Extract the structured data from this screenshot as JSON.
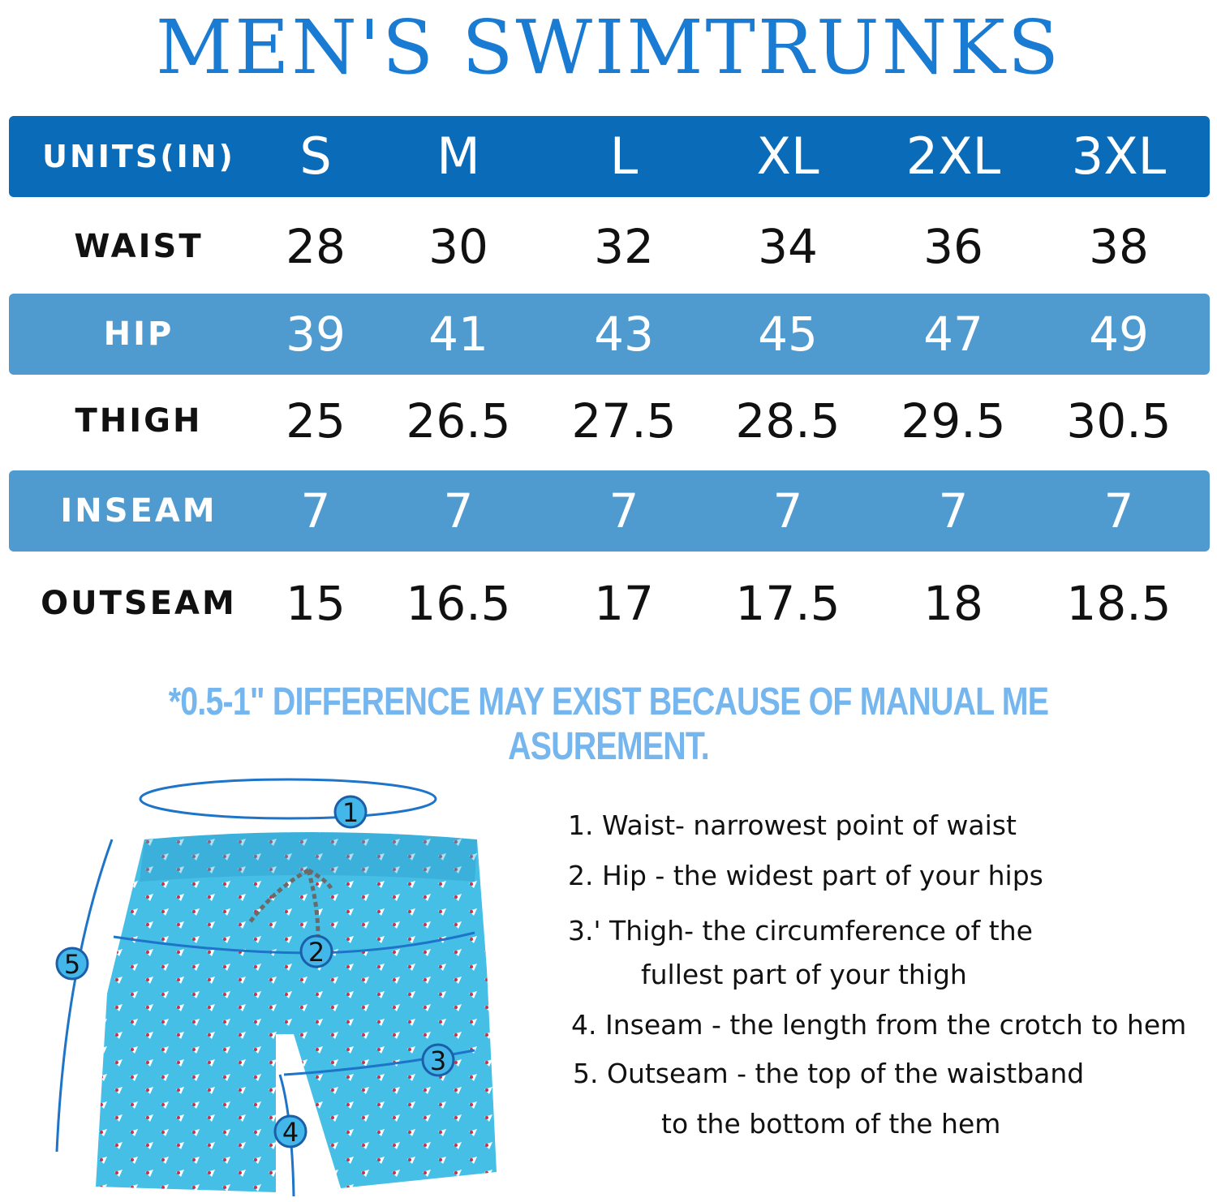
{
  "title": "MEN'S SWIMTRUNKS",
  "table": {
    "header": {
      "label": "UNITS(IN)",
      "sizes": [
        "S",
        "M",
        "L",
        "XL",
        "2XL",
        "3XL"
      ]
    },
    "rows": [
      {
        "label": "WAIST",
        "values": [
          "28",
          "30",
          "32",
          "34",
          "36",
          "38"
        ]
      },
      {
        "label": "HIP",
        "values": [
          "39",
          "41",
          "43",
          "45",
          "47",
          "49"
        ]
      },
      {
        "label": "THIGH",
        "values": [
          "25",
          "26.5",
          "27.5",
          "28.5",
          "29.5",
          "30.5"
        ]
      },
      {
        "label": "INSEAM",
        "values": [
          "7",
          "7",
          "7",
          "7",
          "7",
          "7"
        ]
      },
      {
        "label": "OUTSEAM",
        "values": [
          "15",
          "16.5",
          "17",
          "17.5",
          "18",
          "18.5"
        ]
      }
    ]
  },
  "note": "*0.5-1\" DIFFERENCE MAY EXIST BECAUSE OF MANUAL ME ASUREMENT.",
  "markers": [
    "1",
    "2",
    "3",
    "4",
    "5"
  ],
  "definitions": [
    "1. Waist- narrowest point of waist",
    "2. Hip - the widest part of your hips",
    "3.' Thigh- the circumference of the",
    "fullest part of your thigh",
    "4. Inseam - the length from the crotch to hem",
    "5. Outseam - the top of the waistband",
    "to the bottom of the hem"
  ],
  "colors": {
    "title": "#1a7bd2",
    "band_dark": "#0a6bb8",
    "band_light": "#4f9bd0",
    "note": "#76b6ee",
    "shorts": "#45bfe6"
  },
  "icons": {
    "shorts": "swim-shorts-illustration"
  }
}
